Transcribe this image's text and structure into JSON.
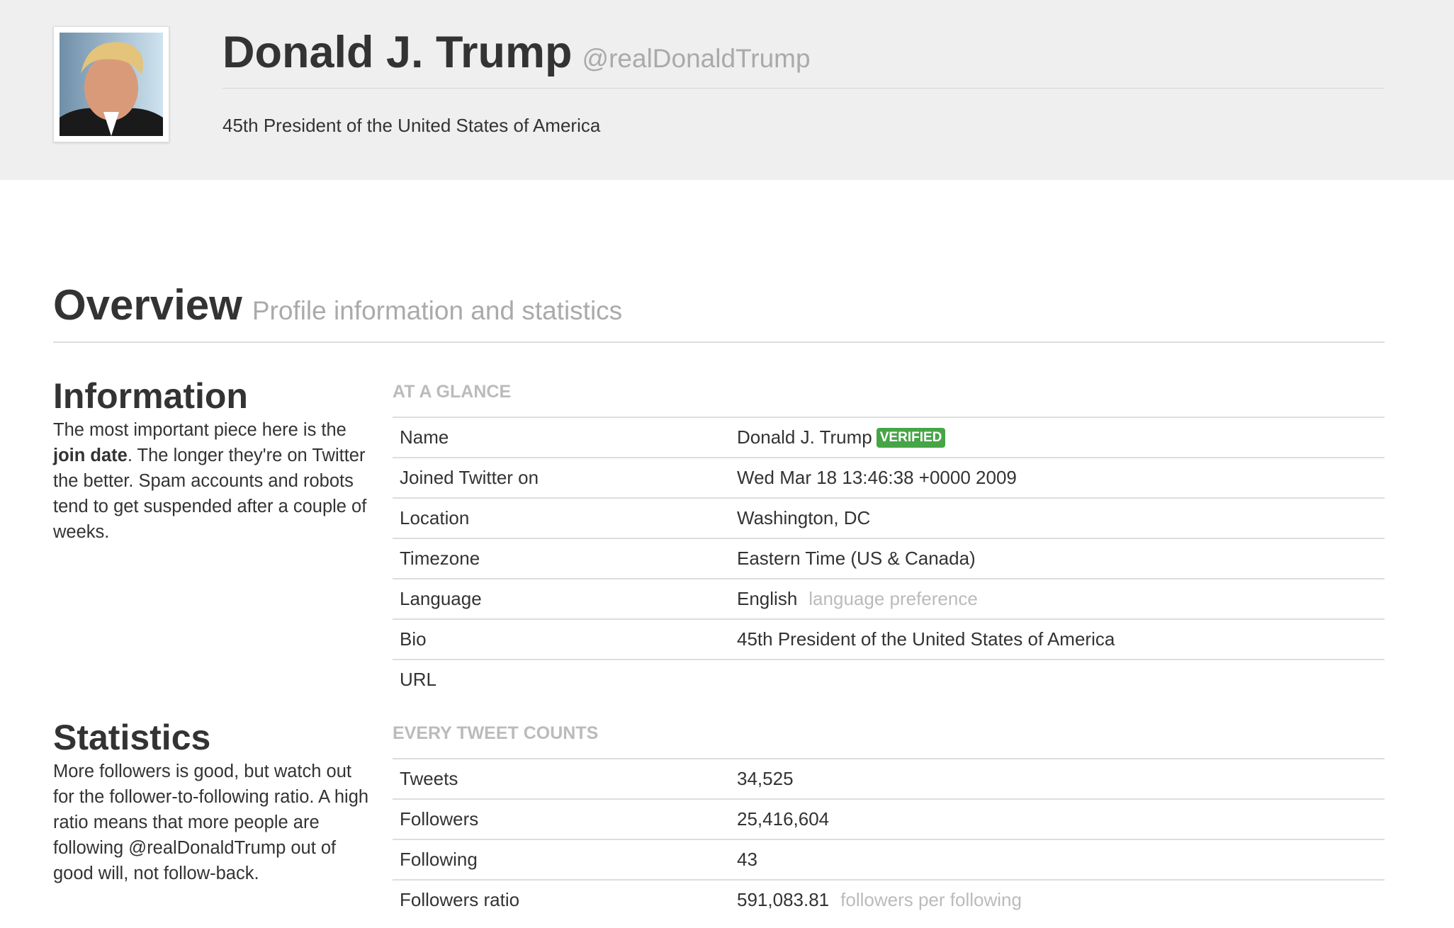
{
  "header": {
    "name": "Donald J. Trump",
    "handle": "@realDonaldTrump",
    "bio": "45th President of the United States of America"
  },
  "overview": {
    "title": "Overview",
    "subtitle": "Profile information and statistics"
  },
  "sections": [
    {
      "title": "Information",
      "description": [
        "The most important piece here is the ",
        "join date",
        ". The longer they're on Twitter the better. Spam accounts and robots tend to get suspended after a couple of weeks."
      ],
      "table_heading": "AT A GLANCE",
      "rows": [
        {
          "label": "Name",
          "value": "Donald J. Trump",
          "badge": "VERIFIED"
        },
        {
          "label": "Joined Twitter on",
          "value": "Wed Mar 18 13:46:38 +0000 2009"
        },
        {
          "label": "Location",
          "value": "Washington, DC"
        },
        {
          "label": "Timezone",
          "value": "Eastern Time (US & Canada)"
        },
        {
          "label": "Language",
          "value": "English",
          "note": "language preference"
        },
        {
          "label": "Bio",
          "value": "45th President of the United States of America"
        },
        {
          "label": "URL"
        }
      ]
    },
    {
      "title": "Statistics",
      "description": [
        "More followers is good, but watch out for the follower-to-following ratio. A high ratio means that more people are following @realDonaldTrump out of good will, not follow-back."
      ],
      "table_heading": "EVERY TWEET COUNTS",
      "rows": [
        {
          "label": "Tweets",
          "value": "34,525"
        },
        {
          "label": "Followers",
          "value": "25,416,604"
        },
        {
          "label": "Following",
          "value": "43"
        },
        {
          "label": "Followers ratio",
          "value": "591,083.81",
          "note": "followers per following"
        }
      ]
    }
  ]
}
